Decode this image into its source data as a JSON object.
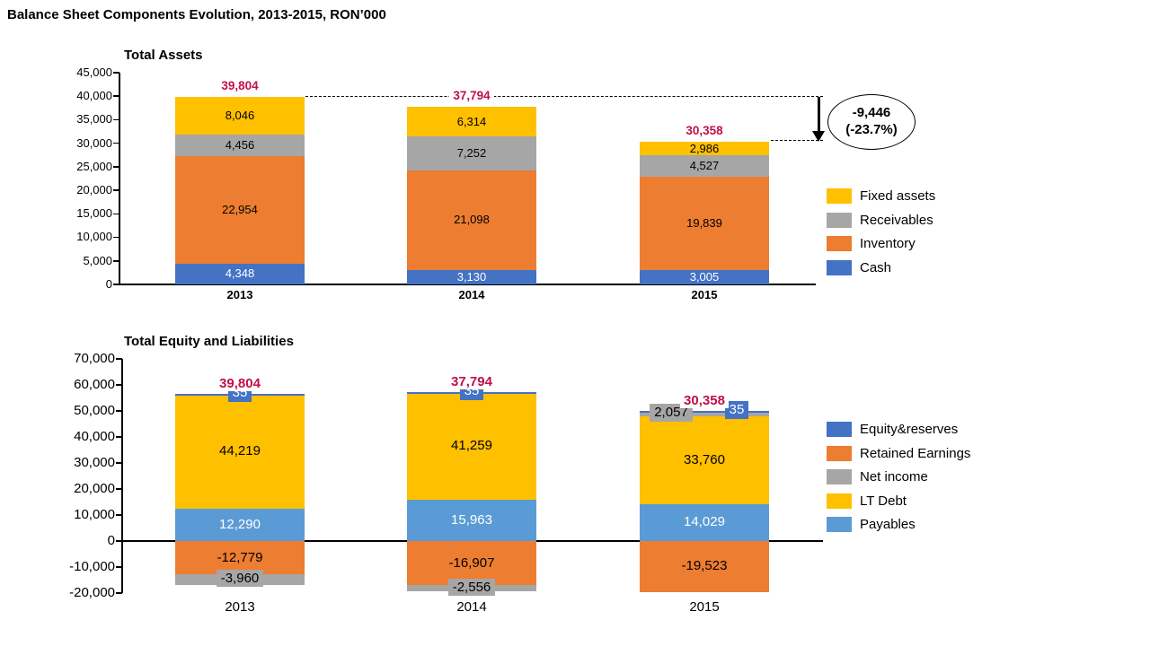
{
  "title": "Balance Sheet Components Evolution, 2013-2015, RON’000",
  "annotation": {
    "line1": "-9,446",
    "line2": "(-23.7%)"
  },
  "chart_data": [
    {
      "type": "bar",
      "stacked": true,
      "title": "Total Assets",
      "categories": [
        "2013",
        "2014",
        "2015"
      ],
      "ylim": [
        0,
        45000
      ],
      "ytick_step": 5000,
      "grid": false,
      "legend_position": "right",
      "series": [
        {
          "name": "Cash",
          "color": "#4472C4",
          "label_color": "#FFFFFF",
          "values": [
            4348,
            3130,
            3005
          ]
        },
        {
          "name": "Inventory",
          "color": "#ED7D31",
          "label_color": "#000000",
          "values": [
            22954,
            21098,
            19839
          ]
        },
        {
          "name": "Receivables",
          "color": "#A6A6A6",
          "label_color": "#000000",
          "values": [
            4456,
            7252,
            4527
          ]
        },
        {
          "name": "Fixed assets",
          "color": "#FFC000",
          "label_color": "#000000",
          "values": [
            8046,
            6314,
            2986
          ]
        }
      ],
      "totals": [
        "39,804",
        "37,794",
        "30,358"
      ],
      "total_color": "#C01048",
      "legend": [
        {
          "label": "Fixed assets",
          "color": "#FFC000"
        },
        {
          "label": "Receivables",
          "color": "#A6A6A6"
        },
        {
          "label": "Inventory",
          "color": "#ED7D31"
        },
        {
          "label": "Cash",
          "color": "#4472C4"
        }
      ]
    },
    {
      "type": "bar",
      "stacked": true,
      "title": "Total Equity and Liabilities",
      "categories": [
        "2013",
        "2014",
        "2015"
      ],
      "ylim": [
        -20000,
        70000
      ],
      "ytick_step": 10000,
      "grid": false,
      "legend_position": "right",
      "series": [
        {
          "name": "Payables",
          "color": "#5B9BD5",
          "label_color": "#FFFFFF",
          "values": [
            12290,
            15963,
            14029
          ]
        },
        {
          "name": "LT Debt",
          "color": "#FFC000",
          "label_color": "#000000",
          "values": [
            44219,
            41259,
            33760
          ]
        },
        {
          "name": "Retained Earnings",
          "color": "#ED7D31",
          "label_color": "#000000",
          "values": [
            -12779,
            -16907,
            -19523
          ]
        },
        {
          "name": "Net income",
          "color": "#A6A6A6",
          "label_color": "#000000",
          "values": [
            -3960,
            -2556,
            2057
          ]
        },
        {
          "name": "Equity&reserves",
          "color": "#4472C4",
          "label_color": "#FFFFFF",
          "values": [
            35,
            35,
            35
          ]
        }
      ],
      "totals": [
        "39,804",
        "37,794",
        "30,358"
      ],
      "total_color": "#C01048",
      "legend": [
        {
          "label": "Equity&reserves",
          "color": "#4472C4"
        },
        {
          "label": "Retained Earnings",
          "color": "#ED7D31"
        },
        {
          "label": "Net income",
          "color": "#A6A6A6"
        },
        {
          "label": "LT Debt",
          "color": "#FFC000"
        },
        {
          "label": "Payables",
          "color": "#5B9BD5"
        }
      ]
    }
  ]
}
